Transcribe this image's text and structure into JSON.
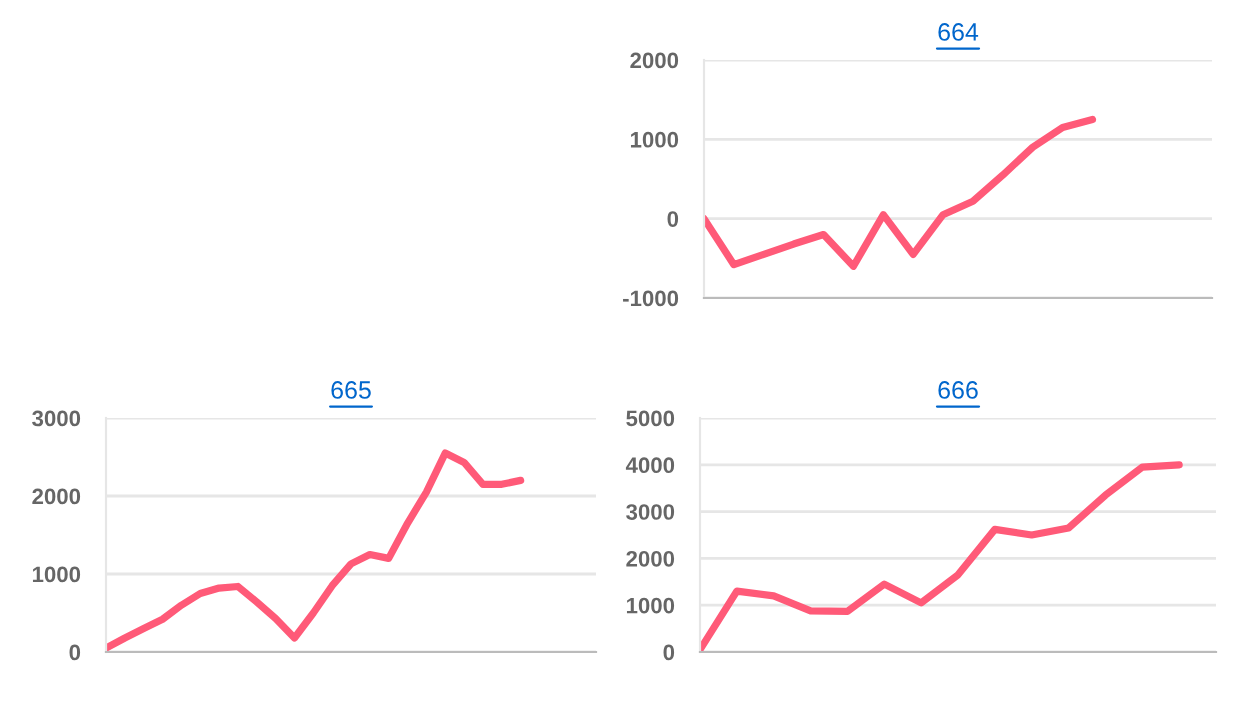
{
  "chart_data": [
    {
      "type": "line",
      "title": "664",
      "categories": [
        null,
        null,
        null,
        null,
        null,
        null,
        null,
        null,
        null,
        null,
        null,
        null,
        null,
        null,
        null,
        null,
        null,
        null
      ],
      "series": [
        {
          "color": "#ff5a78",
          "values": [
            0,
            -580,
            -450,
            -320,
            -200,
            -600,
            50,
            -450,
            50,
            220,
            550,
            900,
            1150,
            1250,
            null,
            null,
            null,
            null
          ]
        }
      ],
      "ylim": [
        -1000,
        2000
      ],
      "yticks": [
        -1000,
        0,
        1000,
        2000
      ],
      "grid": "y",
      "tick_labels": "y",
      "marker": "none",
      "line_style": "solid",
      "legend": false
    },
    {
      "type": "line",
      "title": "665",
      "categories": [
        null,
        null,
        null,
        null,
        null,
        null,
        null,
        null,
        null,
        null,
        null,
        null,
        null,
        null,
        null,
        null,
        null,
        null,
        null,
        null,
        null,
        null,
        null,
        null,
        null,
        null,
        null
      ],
      "series": [
        {
          "color": "#ff5a78",
          "values": [
            50,
            180,
            300,
            420,
            600,
            750,
            820,
            840,
            640,
            430,
            180,
            500,
            850,
            1130,
            1250,
            1200,
            1650,
            2050,
            2550,
            2430,
            2150,
            2150,
            2200,
            null,
            null,
            null,
            null
          ]
        }
      ],
      "ylim": [
        0,
        3000
      ],
      "yticks": [
        0,
        1000,
        2000,
        3000
      ],
      "grid": "y",
      "tick_labels": "y",
      "marker": "none",
      "line_style": "solid",
      "legend": false
    },
    {
      "type": "line",
      "title": "666",
      "categories": [
        null,
        null,
        null,
        null,
        null,
        null,
        null,
        null,
        null,
        null,
        null,
        null,
        null,
        null,
        null
      ],
      "series": [
        {
          "color": "#ff5a78",
          "values": [
            50,
            1300,
            1200,
            880,
            870,
            1450,
            1050,
            1650,
            2620,
            2500,
            2650,
            3350,
            3950,
            4000,
            null
          ]
        }
      ],
      "ylim": [
        0,
        5000
      ],
      "yticks": [
        0,
        1000,
        2000,
        3000,
        4000,
        5000
      ],
      "grid": "y",
      "tick_labels": "y",
      "marker": "none",
      "line_style": "solid",
      "legend": false
    }
  ]
}
